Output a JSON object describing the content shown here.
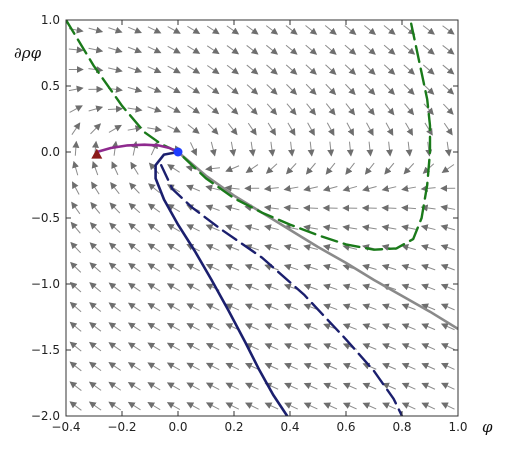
{
  "chart_data": {
    "type": "line",
    "title": "",
    "xlabel": "φ",
    "ylabel": "∂ρφ",
    "xlim": [
      -0.4,
      1.0
    ],
    "ylim": [
      -2.0,
      1.0
    ],
    "x_ticks": [
      -0.4,
      -0.2,
      0.0,
      0.2,
      0.4,
      0.6,
      0.8,
      1.0
    ],
    "y_ticks": [
      1.0,
      0.5,
      0.0,
      -0.5,
      -1.0,
      -1.5,
      -2.0
    ],
    "x_tick_labels": [
      "−0.4",
      "−0.2",
      "0.0",
      "0.2",
      "0.4",
      "0.6",
      "0.8",
      "1.0"
    ],
    "y_tick_labels": [
      "1.0",
      "0.5",
      "0.0",
      "−0.5",
      "−1.0",
      "−1.5",
      "−2.0"
    ],
    "grid": false,
    "legend": "none",
    "background": "vector stream field",
    "series": [
      {
        "style": "solid",
        "color": "#8a8a8a",
        "x": [
          0.0,
          0.1,
          0.2,
          0.3,
          0.4,
          0.5,
          0.6,
          0.7,
          0.8,
          0.9,
          1.0
        ],
        "y": [
          0.0,
          -0.18,
          -0.33,
          -0.46,
          -0.59,
          -0.72,
          -0.84,
          -0.97,
          -1.09,
          -1.21,
          -1.34
        ]
      },
      {
        "style": "dashed",
        "color": "#1a7a1a",
        "x": [
          -0.4,
          -0.3,
          -0.2,
          -0.12,
          -0.06,
          0.0,
          0.1,
          0.2,
          0.3,
          0.4,
          0.5,
          0.6,
          0.7,
          0.78,
          0.84,
          0.87,
          0.89,
          0.9,
          0.9,
          0.89,
          0.87,
          0.85,
          0.83
        ],
        "y": [
          1.0,
          0.65,
          0.35,
          0.15,
          0.06,
          0.0,
          -0.2,
          -0.35,
          -0.46,
          -0.55,
          -0.63,
          -0.7,
          -0.74,
          -0.73,
          -0.66,
          -0.5,
          -0.25,
          0.0,
          0.2,
          0.4,
          0.6,
          0.8,
          1.0
        ]
      },
      {
        "style": "solid",
        "color": "#1b1f6e",
        "x": [
          0.0,
          -0.05,
          -0.08,
          -0.08,
          -0.05,
          0.0,
          0.06,
          0.12,
          0.18,
          0.24,
          0.29,
          0.34,
          0.39
        ],
        "y": [
          0.0,
          -0.02,
          -0.1,
          -0.2,
          -0.36,
          -0.55,
          -0.75,
          -0.97,
          -1.2,
          -1.44,
          -1.65,
          -1.84,
          -2.0
        ]
      },
      {
        "style": "dashed",
        "color": "#1b1f6e",
        "x": [
          -0.06,
          -0.02,
          0.05,
          0.15,
          0.3,
          0.45,
          0.6,
          0.7,
          0.77,
          0.8
        ],
        "y": [
          -0.1,
          -0.28,
          -0.42,
          -0.58,
          -0.8,
          -1.08,
          -1.42,
          -1.66,
          -1.87,
          -2.0
        ]
      },
      {
        "style": "solid",
        "color": "#8e2a8e",
        "x": [
          -0.29,
          -0.24,
          -0.18,
          -0.12,
          -0.07,
          -0.03,
          0.0
        ],
        "y": [
          0.0,
          0.03,
          0.05,
          0.055,
          0.05,
          0.03,
          0.0
        ]
      }
    ],
    "markers": [
      {
        "shape": "circle",
        "color": "#1e3cff",
        "x": 0.0,
        "y": 0.0
      },
      {
        "shape": "triangle",
        "color": "#8b1a1a",
        "x": -0.29,
        "y": -0.02
      }
    ]
  }
}
